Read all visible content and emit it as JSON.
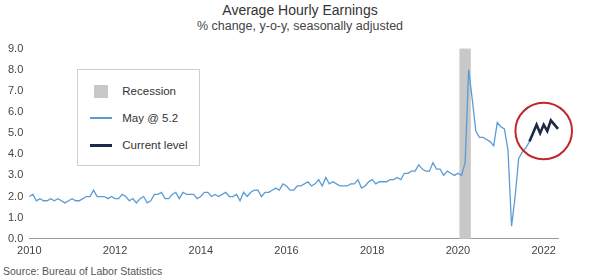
{
  "chart_data": {
    "type": "line",
    "title": "Average Hourly Earnings",
    "subtitle": "% change, y-o-y, seasonally adjusted",
    "source": "Source: Bureau of Labor Statistics",
    "categories": [
      "2010",
      null,
      null,
      null,
      null,
      null,
      null,
      null,
      null,
      null,
      null,
      null,
      null,
      null,
      null,
      null,
      null,
      null,
      null,
      null,
      null,
      null,
      null,
      null,
      "2012",
      null,
      null,
      null,
      null,
      null,
      null,
      null,
      null,
      null,
      null,
      null,
      null,
      null,
      null,
      null,
      null,
      null,
      null,
      null,
      null,
      null,
      null,
      null,
      "2014",
      null,
      null,
      null,
      null,
      null,
      null,
      null,
      null,
      null,
      null,
      null,
      null,
      null,
      null,
      null,
      null,
      null,
      null,
      null,
      null,
      null,
      null,
      null,
      "2016",
      null,
      null,
      null,
      null,
      null,
      null,
      null,
      null,
      null,
      null,
      null,
      null,
      null,
      null,
      null,
      null,
      null,
      null,
      null,
      null,
      null,
      null,
      null,
      "2018",
      null,
      null,
      null,
      null,
      null,
      null,
      null,
      null,
      null,
      null,
      null,
      null,
      null,
      null,
      null,
      null,
      null,
      null,
      null,
      null,
      null,
      null,
      null,
      "2020",
      null,
      null,
      null,
      null,
      null,
      null,
      null,
      null,
      null,
      null,
      null,
      null,
      null,
      null,
      null,
      null,
      null,
      null,
      null,
      null,
      null,
      null,
      null,
      "2022",
      null,
      null,
      null,
      null
    ],
    "series": [
      {
        "name": "Recession",
        "type": "bar",
        "color": "#c8c8c8",
        "values": [
          null,
          null,
          null,
          null,
          null,
          null,
          null,
          null,
          null,
          null,
          null,
          null,
          null,
          null,
          null,
          null,
          null,
          null,
          null,
          null,
          null,
          null,
          null,
          null,
          null,
          null,
          null,
          null,
          null,
          null,
          null,
          null,
          null,
          null,
          null,
          null,
          null,
          null,
          null,
          null,
          null,
          null,
          null,
          null,
          null,
          null,
          null,
          null,
          null,
          null,
          null,
          null,
          null,
          null,
          null,
          null,
          null,
          null,
          null,
          null,
          null,
          null,
          null,
          null,
          null,
          null,
          null,
          null,
          null,
          null,
          null,
          null,
          null,
          null,
          null,
          null,
          null,
          null,
          null,
          null,
          null,
          null,
          null,
          null,
          null,
          null,
          null,
          null,
          null,
          null,
          null,
          null,
          null,
          null,
          null,
          null,
          null,
          null,
          null,
          null,
          null,
          null,
          null,
          null,
          null,
          null,
          null,
          null,
          null,
          null,
          null,
          null,
          null,
          null,
          null,
          null,
          null,
          null,
          null,
          null,
          null,
          9.0,
          9.0,
          9.0,
          null,
          null,
          null,
          null,
          null,
          null,
          null,
          null,
          null,
          null,
          null,
          null,
          null,
          null,
          null,
          null,
          null,
          null,
          null,
          null,
          null,
          null,
          null,
          null,
          null
        ]
      },
      {
        "name": "May @ 5.2",
        "type": "line",
        "color": "#5b9bd5",
        "line_style": "solid",
        "values": [
          2.0,
          2.1,
          1.8,
          1.9,
          1.8,
          1.8,
          1.9,
          1.8,
          1.9,
          1.8,
          1.7,
          1.8,
          1.9,
          1.8,
          1.8,
          1.9,
          2.0,
          2.0,
          2.3,
          2.0,
          2.0,
          2.0,
          1.9,
          2.0,
          1.9,
          1.9,
          2.1,
          2.0,
          1.8,
          1.9,
          1.7,
          1.9,
          2.0,
          1.7,
          1.8,
          2.1,
          2.1,
          2.2,
          1.9,
          1.9,
          2.1,
          2.2,
          1.9,
          2.2,
          2.1,
          2.1,
          2.1,
          1.9,
          2.0,
          2.2,
          2.2,
          2.0,
          2.1,
          2.0,
          2.1,
          2.2,
          2.0,
          2.0,
          2.1,
          1.8,
          2.2,
          2.0,
          2.2,
          2.3,
          2.3,
          2.0,
          2.2,
          2.2,
          2.3,
          2.4,
          2.3,
          2.6,
          2.5,
          2.3,
          2.3,
          2.5,
          2.5,
          2.6,
          2.7,
          2.5,
          2.6,
          2.8,
          2.5,
          2.9,
          2.6,
          2.7,
          2.6,
          2.5,
          2.5,
          2.5,
          2.6,
          2.6,
          2.8,
          2.4,
          2.5,
          2.7,
          2.8,
          2.6,
          2.7,
          2.7,
          2.7,
          2.8,
          2.8,
          2.9,
          2.8,
          3.1,
          3.1,
          3.2,
          3.2,
          3.5,
          3.3,
          3.2,
          3.2,
          3.6,
          3.3,
          3.3,
          3.0,
          3.2,
          3.1,
          3.0,
          3.1,
          3.0,
          3.6,
          8.0,
          6.6,
          5.1,
          4.8,
          4.8,
          4.7,
          4.6,
          4.4,
          5.5,
          5.3,
          5.2,
          4.2,
          0.6,
          2.0,
          3.8,
          4.1,
          4.3,
          4.6,
          null,
          null,
          null,
          null,
          null,
          null,
          null,
          null
        ]
      },
      {
        "name": "Current level",
        "type": "line",
        "color": "#1b2a47",
        "line_style": "solid",
        "values": [
          null,
          null,
          null,
          null,
          null,
          null,
          null,
          null,
          null,
          null,
          null,
          null,
          null,
          null,
          null,
          null,
          null,
          null,
          null,
          null,
          null,
          null,
          null,
          null,
          null,
          null,
          null,
          null,
          null,
          null,
          null,
          null,
          null,
          null,
          null,
          null,
          null,
          null,
          null,
          null,
          null,
          null,
          null,
          null,
          null,
          null,
          null,
          null,
          null,
          null,
          null,
          null,
          null,
          null,
          null,
          null,
          null,
          null,
          null,
          null,
          null,
          null,
          null,
          null,
          null,
          null,
          null,
          null,
          null,
          null,
          null,
          null,
          null,
          null,
          null,
          null,
          null,
          null,
          null,
          null,
          null,
          null,
          null,
          null,
          null,
          null,
          null,
          null,
          null,
          null,
          null,
          null,
          null,
          null,
          null,
          null,
          null,
          null,
          null,
          null,
          null,
          null,
          null,
          null,
          null,
          null,
          null,
          null,
          null,
          null,
          null,
          null,
          null,
          null,
          null,
          null,
          null,
          null,
          null,
          null,
          null,
          null,
          null,
          null,
          null,
          null,
          null,
          null,
          null,
          null,
          null,
          null,
          null,
          null,
          null,
          null,
          null,
          null,
          null,
          null,
          4.6,
          5.0,
          5.4,
          5.0,
          5.4,
          5.1,
          5.6,
          5.4,
          5.2
        ]
      }
    ],
    "ylim": [
      0,
      9
    ],
    "yticks": [
      {
        "value": 0,
        "label": "0.0"
      },
      {
        "value": 1,
        "label": "1.0"
      },
      {
        "value": 2,
        "label": "2.0"
      },
      {
        "value": 3,
        "label": "3.0"
      },
      {
        "value": 4,
        "label": "4.0"
      },
      {
        "value": 5,
        "label": "5.0"
      },
      {
        "value": 6,
        "label": "6.0"
      },
      {
        "value": 7,
        "label": "7.0"
      },
      {
        "value": 8,
        "label": "8.0"
      },
      {
        "value": 9,
        "label": "9.0"
      }
    ],
    "grid": false,
    "legend": "upper left"
  }
}
